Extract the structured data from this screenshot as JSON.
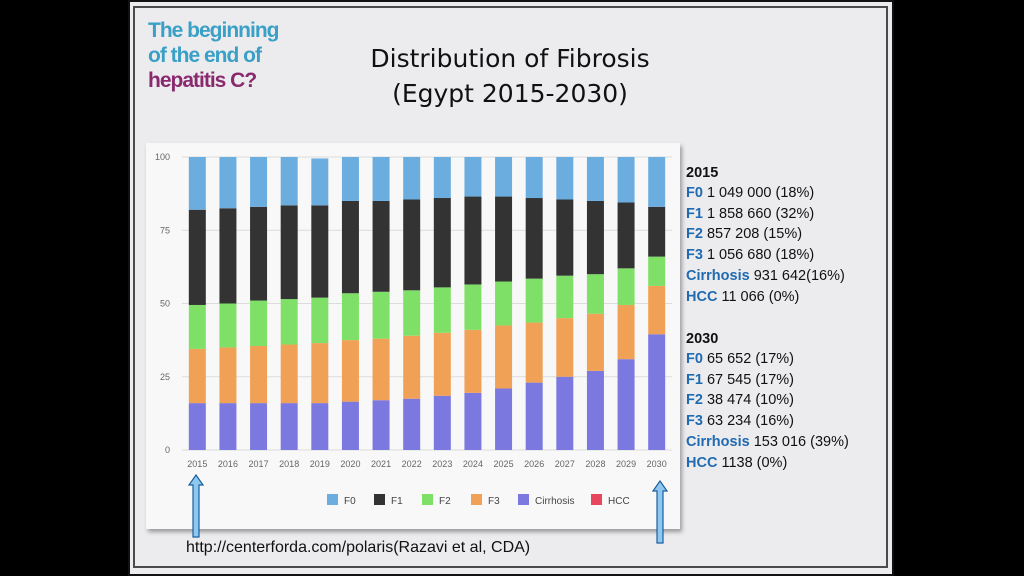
{
  "logo": {
    "line1": "The beginning",
    "line2": "of the end of",
    "line3": "hepatitis C?"
  },
  "title": {
    "line1": "Distribution of Fibrosis",
    "line2": "(Egypt 2015-2030)"
  },
  "colors": {
    "F0": "#6baddf",
    "F1": "#333333",
    "F2": "#7fe067",
    "F3": "#f0a155",
    "Cirrhosis": "#7b78e0",
    "HCC": "#e8465f"
  },
  "chart_data": {
    "type": "bar",
    "stacked": true,
    "categories": [
      "2015",
      "2016",
      "2017",
      "2018",
      "2019",
      "2020",
      "2021",
      "2022",
      "2023",
      "2024",
      "2025",
      "2026",
      "2027",
      "2028",
      "2029",
      "2030"
    ],
    "ylim": [
      0,
      100
    ],
    "yticks": [
      0,
      25,
      50,
      75,
      100
    ],
    "legend_position": "bottom",
    "series": [
      {
        "name": "Cirrhosis",
        "values": [
          16,
          16,
          16,
          16,
          16,
          16.5,
          17,
          17.5,
          18.5,
          19.5,
          21,
          23,
          25,
          27,
          31,
          39.5
        ]
      },
      {
        "name": "F3",
        "values": [
          18.5,
          19,
          19.5,
          20,
          20.5,
          21,
          21,
          21.5,
          21.5,
          21.5,
          21.5,
          20.5,
          20,
          19.5,
          18.5,
          16.5
        ]
      },
      {
        "name": "F2",
        "values": [
          15,
          15,
          15.5,
          15.5,
          15.5,
          16,
          16,
          15.5,
          15.5,
          15.5,
          15,
          15,
          14.5,
          13.5,
          12.5,
          10
        ]
      },
      {
        "name": "F1",
        "values": [
          32.5,
          32.5,
          32,
          32,
          31.5,
          31.5,
          31,
          31,
          30.5,
          30,
          29,
          27.5,
          26,
          25,
          22.5,
          17
        ]
      },
      {
        "name": "F0",
        "values": [
          18,
          17.5,
          17,
          16.5,
          16,
          15,
          15,
          14.5,
          14,
          13.5,
          13.5,
          14,
          14.5,
          15,
          15.5,
          17
        ]
      },
      {
        "name": "HCC",
        "values": [
          0,
          0,
          0,
          0,
          0,
          0,
          0,
          0,
          0,
          0,
          0,
          0,
          0,
          0,
          0,
          0
        ]
      }
    ],
    "legend_order": [
      "F0",
      "F1",
      "F2",
      "F3",
      "Cirrhosis",
      "HCC"
    ]
  },
  "stats": {
    "y2015": {
      "heading": "2015",
      "rows": [
        {
          "key": "F0",
          "value": " 1 049 000 (18%)"
        },
        {
          "key": "F1",
          "value": " 1 858 660 (32%)"
        },
        {
          "key": "F2",
          "value": " 857 208 (15%)"
        },
        {
          "key": "F3",
          "value": " 1 056 680 (18%)"
        },
        {
          "key": "Cirrhosis",
          "value": " 931 642(16%)"
        },
        {
          "key": "HCC",
          "value": " 11 066 (0%)"
        }
      ]
    },
    "y2030": {
      "heading": "2030",
      "rows": [
        {
          "key": "F0",
          "value": " 65 652 (17%)"
        },
        {
          "key": "F1",
          "value": " 67 545 (17%)"
        },
        {
          "key": "F2",
          "value": " 38 474 (10%)"
        },
        {
          "key": "F3",
          "value": " 63 234 (16%)"
        },
        {
          "key": "Cirrhosis",
          "value": " 153 016 (39%)"
        },
        {
          "key": "HCC",
          "value": " 1138 (0%)"
        }
      ]
    }
  },
  "source": "http://centerforda.com/polaris(Razavi et al, CDA)"
}
